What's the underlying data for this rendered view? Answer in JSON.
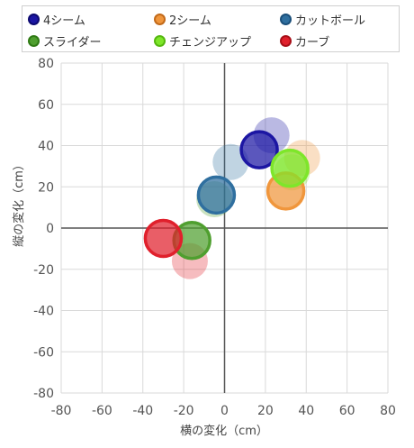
{
  "chart_data": {
    "type": "scatter",
    "xlabel": "横の変化（cm）",
    "ylabel": "縦の変化（cm）",
    "xlim": [
      -80,
      80
    ],
    "ylim": [
      -80,
      80
    ],
    "x_ticks": [
      "-80",
      "-60",
      "-40",
      "-20",
      "0",
      "20",
      "40",
      "60",
      "80"
    ],
    "y_ticks": [
      "80",
      "60",
      "40",
      "20",
      "0",
      "-20",
      "-40",
      "-60",
      "-80"
    ],
    "grid": true,
    "legend_position": "top",
    "series": [
      {
        "name": "4シーム",
        "color": "#1c16a3",
        "points": [
          {
            "x": 23,
            "y": 45,
            "faded": true
          },
          {
            "x": 17,
            "y": 38,
            "faded": false
          }
        ]
      },
      {
        "name": "2シーム",
        "color": "#f0963c",
        "points": [
          {
            "x": 38,
            "y": 34,
            "faded": true
          },
          {
            "x": 30,
            "y": 18,
            "faded": false
          }
        ]
      },
      {
        "name": "カットボール",
        "color": "#2f6f9f",
        "points": [
          {
            "x": 3,
            "y": 32,
            "faded": true
          },
          {
            "x": -4,
            "y": 16,
            "faded": false
          }
        ]
      },
      {
        "name": "スライダー",
        "color": "#4f9f2f",
        "points": [
          {
            "x": -5,
            "y": 14,
            "faded": true
          },
          {
            "x": -16,
            "y": -6,
            "faded": false
          }
        ]
      },
      {
        "name": "チェンジアップ",
        "color": "#7ee62a",
        "points": [
          {
            "x": 33,
            "y": 27,
            "faded": true
          },
          {
            "x": 32,
            "y": 29,
            "faded": false
          }
        ]
      },
      {
        "name": "カーブ",
        "color": "#e0202c",
        "points": [
          {
            "x": -17,
            "y": -16,
            "faded": true
          },
          {
            "x": -30,
            "y": -5,
            "faded": false
          }
        ]
      }
    ]
  }
}
